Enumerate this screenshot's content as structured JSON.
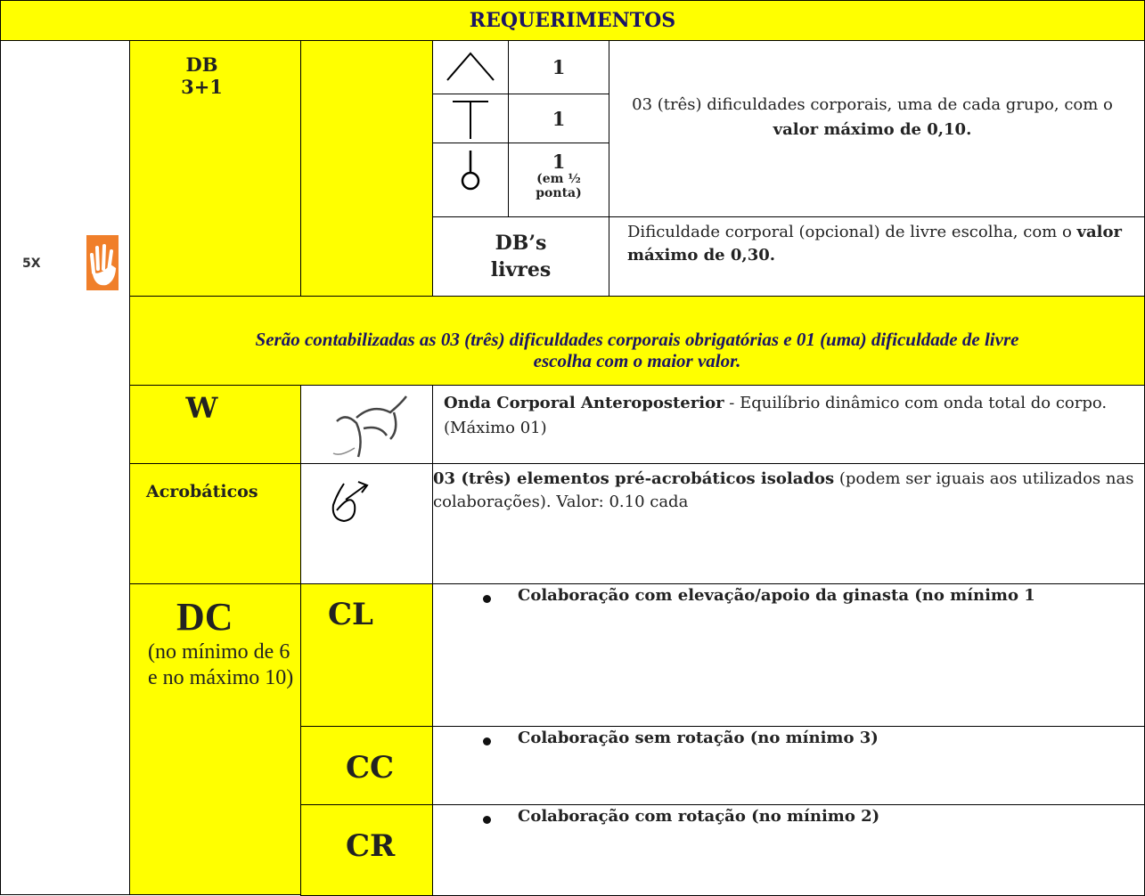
{
  "header": {
    "title": "REQUERIMENTOS"
  },
  "side": {
    "label": "5X"
  },
  "db": {
    "code": "DB",
    "count": "3+1",
    "groups": [
      {
        "value": "1"
      },
      {
        "value": "1"
      },
      {
        "value": "1",
        "note": "(em ½ ponta)"
      }
    ],
    "description": {
      "text": "03 (três) dificuldades corporais, uma de cada grupo, com o ",
      "bold": "valor máximo de 0,10."
    },
    "free": {
      "label": "DB’s livres",
      "text": "Dificuldade corporal (opcional) de livre escolha, com o ",
      "bold": "valor máximo de 0,30."
    }
  },
  "note": "Serão contabilizadas as 03 (três) dificuldades corporais obrigatórias e 01 (uma) dificuldade de livre escolha com o maior valor.",
  "wave": {
    "code": "W",
    "bold": "Onda Corporal Anteroposterior",
    "text": " - Equilíbrio dinâmico com onda total do corpo. (Máximo 01)"
  },
  "acro": {
    "code": "Acrobáticos",
    "bold": "03 (três) elementos pré-acrobáticos isolados",
    "text": " (podem ser iguais aos utilizados nas colaborações). Valor: 0.10 cada"
  },
  "dc": {
    "code": "DC",
    "note": "(no mínimo de 6 e no máximo 10)",
    "rows": [
      {
        "code": "CL",
        "text": "Colaboração com elevação/apoio da ginasta (no mínimo 1"
      },
      {
        "code": "CC",
        "text": "Colaboração sem rotação (no mínimo 3)"
      },
      {
        "code": "CR",
        "text": "Colaboração com rotação (no mínimo 2)"
      }
    ]
  }
}
